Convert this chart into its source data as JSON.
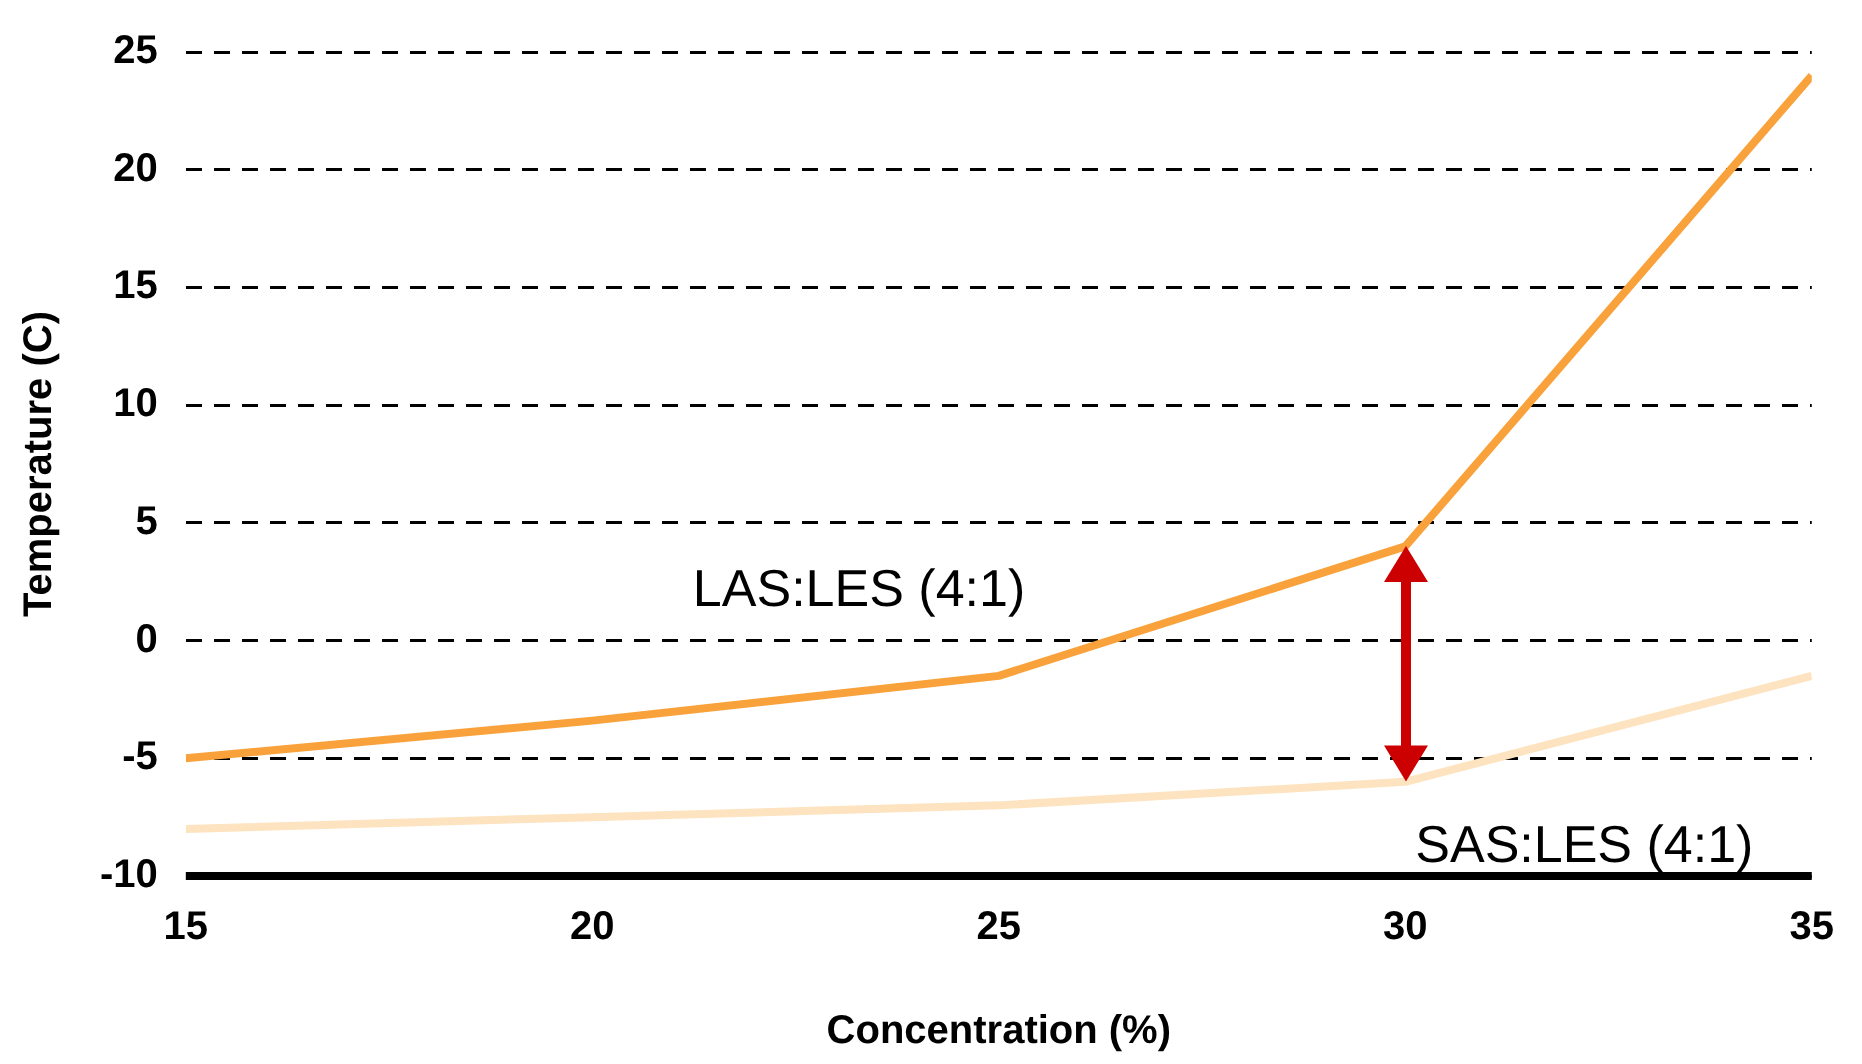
{
  "chart_data": {
    "type": "line",
    "xlabel": "Concentration (%)",
    "ylabel": "Temperature (C)",
    "x": [
      15,
      20,
      25,
      30,
      35
    ],
    "series": [
      {
        "name": "LAS:LES (4:1)",
        "color": "#f9a13a",
        "values": [
          -5,
          -3.4,
          -1.5,
          4,
          24
        ]
      },
      {
        "name": "SAS:LES (4:1)",
        "color": "#fde3bf",
        "values": [
          -8,
          -7.5,
          -7,
          -6,
          -1.5
        ]
      }
    ],
    "xlim": [
      15,
      35
    ],
    "xticks": [
      15,
      20,
      25,
      30,
      35
    ],
    "ylim": [
      -10,
      25
    ],
    "yticks": [
      -10,
      -5,
      0,
      5,
      10,
      15,
      20,
      25
    ],
    "grid": "y",
    "legend": false,
    "marker": "none",
    "line_style": "solid"
  }
}
